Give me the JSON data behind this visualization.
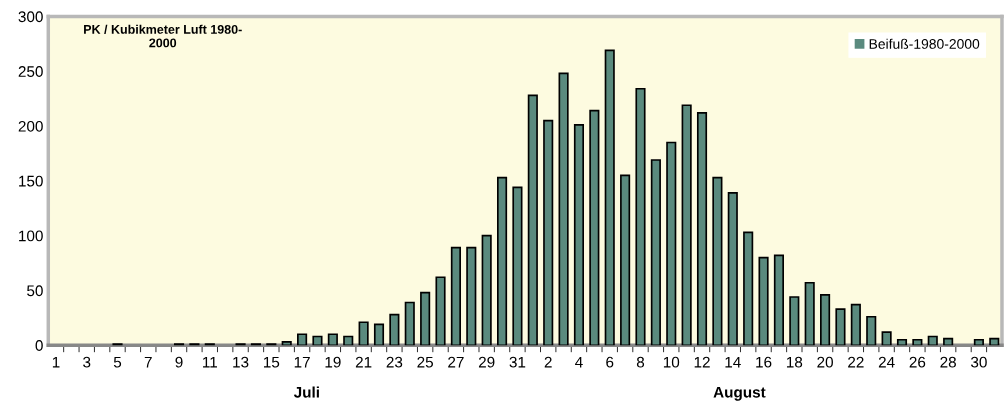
{
  "chart_data": {
    "type": "bar",
    "title": "PK / Kubikmeter Luft 1980-\n2000",
    "categories": [
      "1",
      null,
      "3",
      null,
      "5",
      null,
      "7",
      null,
      "9",
      null,
      "11",
      null,
      "13",
      null,
      "15",
      null,
      "17",
      null,
      "19",
      null,
      "21",
      null,
      "23",
      null,
      "25",
      null,
      "27",
      null,
      "29",
      null,
      "31",
      null,
      "2",
      null,
      "4",
      null,
      "6",
      null,
      "8",
      null,
      "10",
      null,
      "12",
      null,
      "14",
      null,
      "16",
      null,
      "18",
      null,
      "20",
      null,
      "22",
      null,
      "24",
      null,
      "26",
      null,
      "28",
      null,
      "30",
      null
    ],
    "series": [
      {
        "name": "Beifuß-1980-2000",
        "color": "#5a8a7e",
        "values": [
          0,
          0,
          0,
          0,
          1,
          0,
          0,
          0,
          1,
          1,
          1,
          0,
          1,
          1,
          1,
          3,
          10,
          8,
          10,
          8,
          21,
          19,
          28,
          39,
          48,
          62,
          89,
          89,
          100,
          153,
          144,
          228,
          205,
          248,
          201,
          214,
          269,
          155,
          234,
          169,
          185,
          219,
          212,
          153,
          139,
          103,
          80,
          82,
          44,
          57,
          46,
          33,
          37,
          26,
          12,
          5,
          5,
          8,
          6,
          0,
          5,
          6
        ]
      }
    ],
    "annotations": [
      "Juli",
      "August"
    ],
    "ylim": [
      0,
      300
    ],
    "yticks": [
      0,
      50,
      100,
      150,
      200,
      250,
      300
    ],
    "grid": false,
    "legend": "top right"
  }
}
